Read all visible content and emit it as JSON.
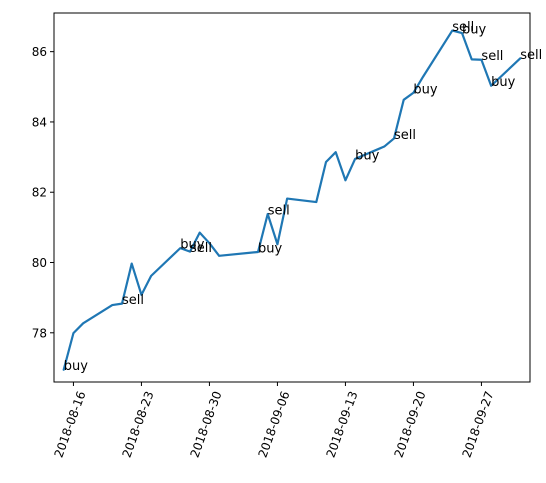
{
  "chart_data": {
    "type": "line",
    "title": "",
    "xlabel": "",
    "ylabel": "",
    "grid": false,
    "legend": "none",
    "line_color": "#1f77b4",
    "xlim": [
      "2018-08-14",
      "2018-10-02"
    ],
    "ylim": [
      76.6,
      87.1
    ],
    "x_ticks": [
      "2018-08-16",
      "2018-08-23",
      "2018-08-30",
      "2018-09-06",
      "2018-09-13",
      "2018-09-20",
      "2018-09-27"
    ],
    "y_ticks": [
      "78",
      "80",
      "82",
      "84",
      "86"
    ],
    "series": [
      {
        "x": [
          "2018-08-15",
          "2018-08-16",
          "2018-08-17",
          "2018-08-20",
          "2018-08-21",
          "2018-08-22",
          "2018-08-23",
          "2018-08-24",
          "2018-08-27",
          "2018-08-28",
          "2018-08-29",
          "2018-08-30",
          "2018-08-31",
          "2018-09-04",
          "2018-09-05",
          "2018-09-06",
          "2018-09-07",
          "2018-09-10",
          "2018-09-11",
          "2018-09-12",
          "2018-09-13",
          "2018-09-14",
          "2018-09-17",
          "2018-09-18",
          "2018-09-19",
          "2018-09-20",
          "2018-09-21",
          "2018-09-24",
          "2018-09-25",
          "2018-09-26",
          "2018-09-27",
          "2018-09-28",
          "2018-10-01"
        ],
        "values": [
          76.95,
          77.99,
          78.27,
          78.79,
          78.83,
          79.97,
          79.08,
          79.62,
          80.41,
          80.31,
          80.85,
          80.55,
          80.19,
          80.3,
          81.38,
          80.52,
          81.82,
          81.72,
          82.86,
          83.14,
          82.34,
          82.95,
          83.3,
          83.53,
          84.63,
          84.83,
          85.29,
          86.6,
          86.53,
          85.78,
          85.77,
          85.03,
          85.81
        ]
      }
    ],
    "annotations": [
      {
        "text": "buy",
        "x": "2018-08-15",
        "y": 76.95
      },
      {
        "text": "sell",
        "x": "2018-08-21",
        "y": 78.83
      },
      {
        "text": "buy",
        "x": "2018-08-27",
        "y": 80.41
      },
      {
        "text": "sell",
        "x": "2018-08-28",
        "y": 80.31
      },
      {
        "text": "buy",
        "x": "2018-09-04",
        "y": 80.3
      },
      {
        "text": "sell",
        "x": "2018-09-05",
        "y": 81.38
      },
      {
        "text": "buy",
        "x": "2018-09-14",
        "y": 82.95
      },
      {
        "text": "sell",
        "x": "2018-09-18",
        "y": 83.53
      },
      {
        "text": "buy",
        "x": "2018-09-20",
        "y": 84.83
      },
      {
        "text": "sell",
        "x": "2018-09-24",
        "y": 86.6
      },
      {
        "text": "buy",
        "x": "2018-09-25",
        "y": 86.53
      },
      {
        "text": "sell",
        "x": "2018-09-27",
        "y": 85.77
      },
      {
        "text": "buy",
        "x": "2018-09-28",
        "y": 85.03
      },
      {
        "text": "sell",
        "x": "2018-10-01",
        "y": 85.81
      }
    ]
  }
}
